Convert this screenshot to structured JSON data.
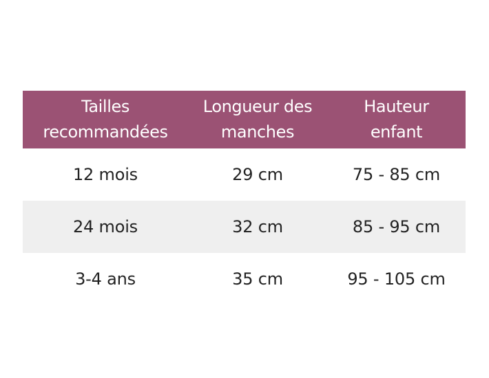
{
  "table": {
    "headers": [
      [
        "Tailles",
        "recommandées"
      ],
      [
        "Longueur des",
        "manches"
      ],
      [
        "Hauteur",
        "enfant"
      ]
    ],
    "rows": [
      [
        "12 mois",
        "29 cm",
        "75 - 85 cm"
      ],
      [
        "24 mois",
        "32 cm",
        "85 - 95 cm"
      ],
      [
        "3-4 ans",
        "35 cm",
        "95 - 105 cm"
      ]
    ]
  },
  "colors": {
    "header_background": "#9b5274",
    "header_text": "#ffffff",
    "shaded_row": "#efefef",
    "body_text": "#222222"
  }
}
